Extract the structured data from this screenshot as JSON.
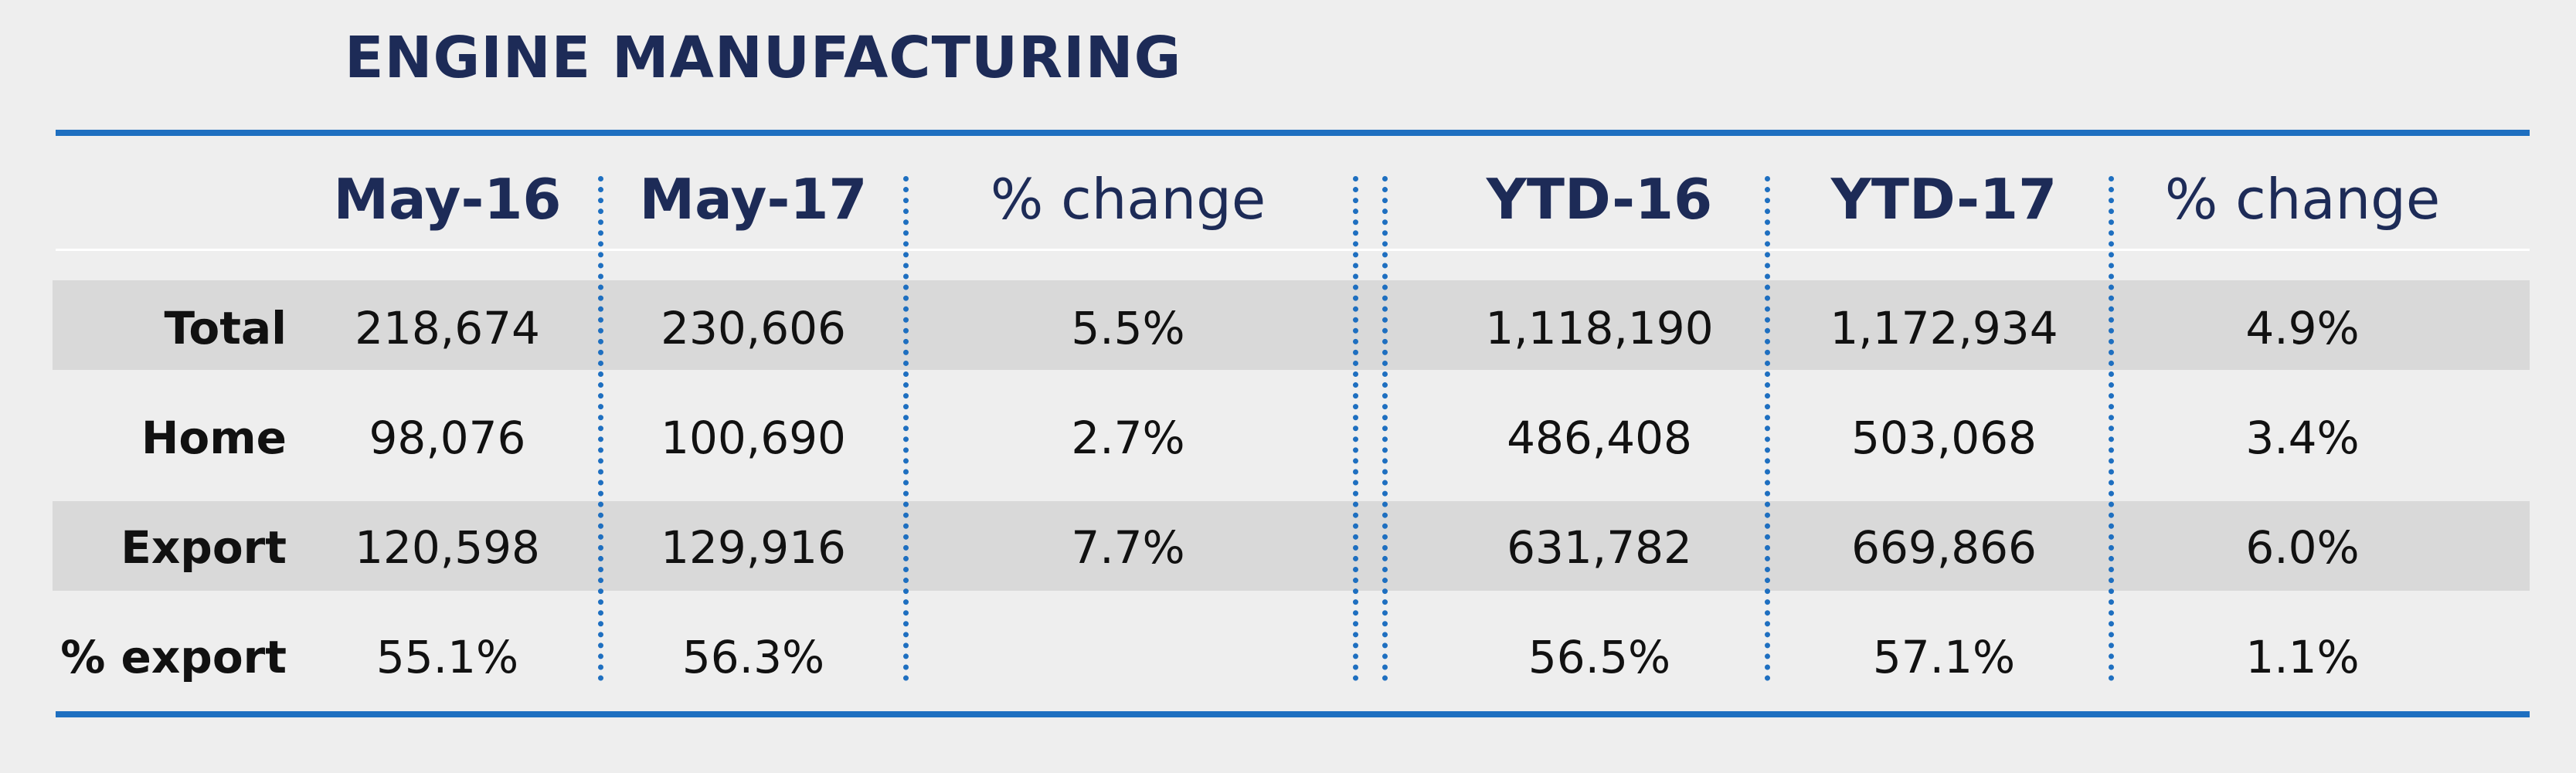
{
  "title": "ENGINE MANUFACTURING",
  "colors": {
    "background": "#eeeeee",
    "accent_blue": "#1e6fc0",
    "navy_text": "#1d2b57",
    "band_gray": "#d9d9d9"
  },
  "headers": [
    "May-16",
    "May-17",
    "% change",
    "YTD-16",
    "YTD-17",
    "% change"
  ],
  "rows": [
    {
      "label": "Total",
      "cells": [
        "218,674",
        "230,606",
        "5.5%",
        "1,118,190",
        "1,172,934",
        "4.9%"
      ]
    },
    {
      "label": "Home",
      "cells": [
        "98,076",
        "100,690",
        "2.7%",
        "486,408",
        "503,068",
        "3.4%"
      ]
    },
    {
      "label": "Export",
      "cells": [
        "120,598",
        "129,916",
        "7.7%",
        "631,782",
        "669,866",
        "6.0%"
      ]
    },
    {
      "label": "% export",
      "cells": [
        "55.1%",
        "56.3%",
        "",
        "56.5%",
        "57.1%",
        "1.1%"
      ]
    }
  ]
}
